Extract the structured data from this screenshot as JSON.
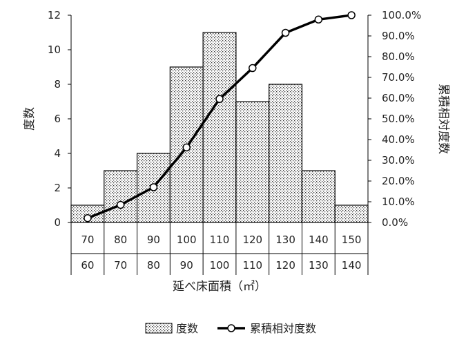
{
  "chart_data": {
    "type": "bar",
    "title": "",
    "xlabel": "延べ床面積（㎡）",
    "ylabel": "度数",
    "y2label": "累積相対度数",
    "categories_upper": [
      "70",
      "80",
      "90",
      "100",
      "110",
      "120",
      "130",
      "140",
      "150"
    ],
    "categories_lower": [
      "60",
      "70",
      "80",
      "90",
      "100",
      "110",
      "120",
      "130",
      "140"
    ],
    "ylim": [
      0,
      12
    ],
    "y_ticks": [
      "0",
      "2",
      "4",
      "6",
      "8",
      "10",
      "12"
    ],
    "y2lim": [
      0,
      1
    ],
    "y2_ticks": [
      "0.0%",
      "10.0%",
      "20.0%",
      "30.0%",
      "40.0%",
      "50.0%",
      "60.0%",
      "70.0%",
      "80.0%",
      "90.0%",
      "100.0%"
    ],
    "grid": false,
    "legend_position": "bottom",
    "series": [
      {
        "name": "度数",
        "type": "bar",
        "values": [
          1,
          3,
          4,
          9,
          11,
          7,
          8,
          3,
          1
        ]
      },
      {
        "name": "累積相対度数",
        "type": "line",
        "axis": "right",
        "values": [
          0.021,
          0.085,
          0.17,
          0.362,
          0.596,
          0.745,
          0.915,
          0.979,
          1.0
        ]
      }
    ]
  }
}
